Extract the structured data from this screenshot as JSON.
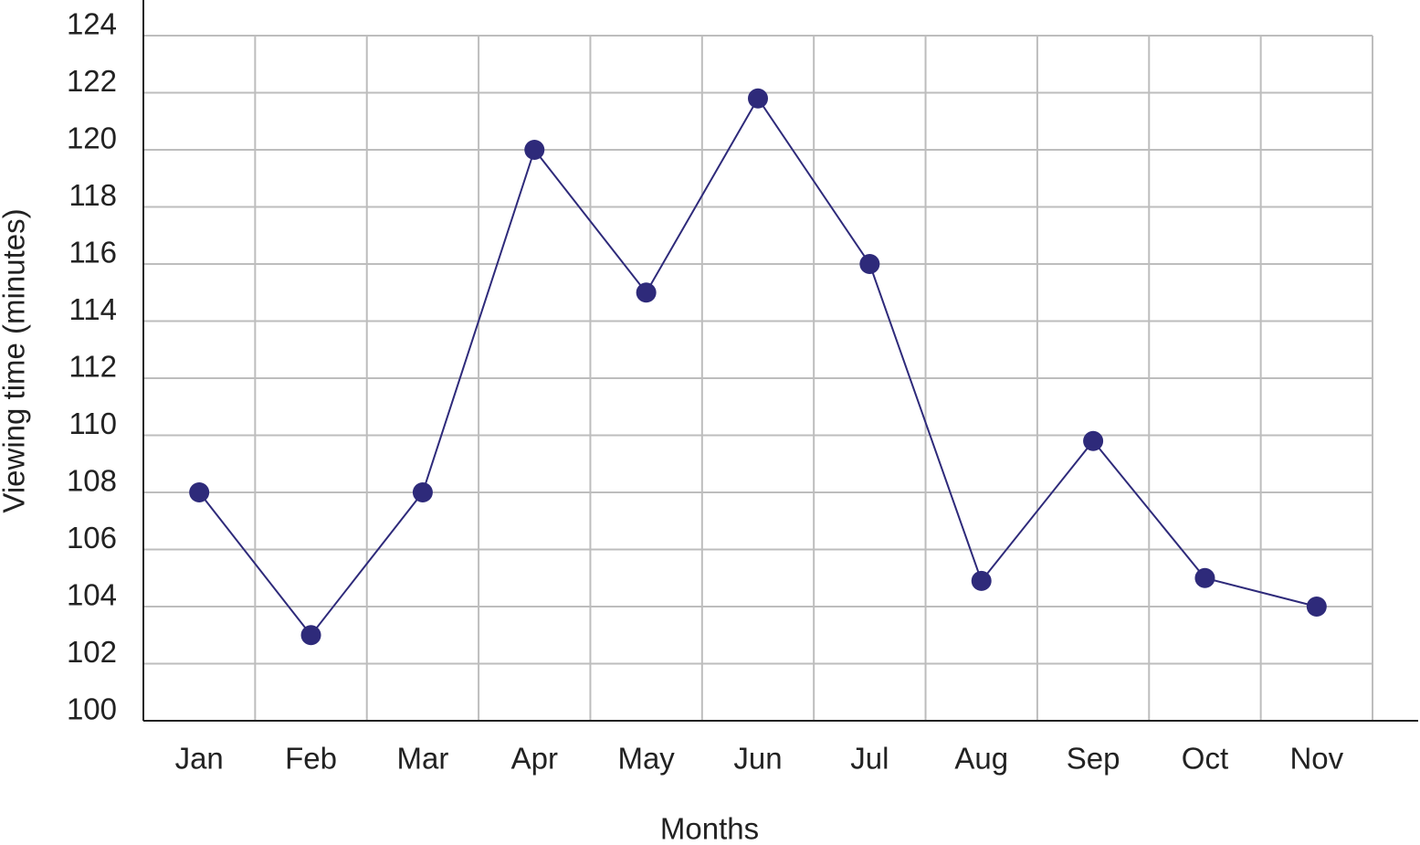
{
  "chart_data": {
    "type": "line",
    "x_label": "Months",
    "y_label": "Viewing time (minutes)",
    "categories": [
      "Jan",
      "Feb",
      "Mar",
      "Apr",
      "May",
      "Jun",
      "Jul",
      "Aug",
      "Sep",
      "Oct",
      "Nov"
    ],
    "values": [
      108,
      103,
      108,
      120,
      115,
      121.8,
      116,
      104.9,
      109.8,
      105,
      104
    ],
    "color": "#2e2a7a",
    "ylim": [
      100,
      124
    ],
    "yticks": [
      100,
      102,
      104,
      106,
      108,
      110,
      112,
      114,
      116,
      118,
      120,
      122,
      124
    ],
    "grid": true
  }
}
